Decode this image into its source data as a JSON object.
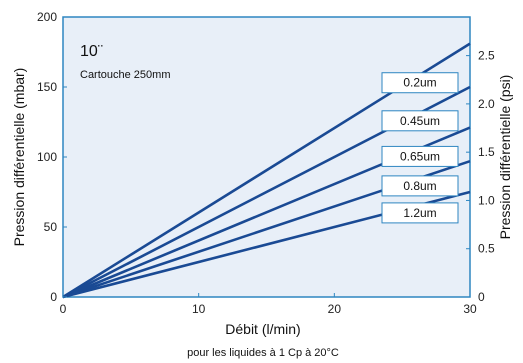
{
  "chart_data": {
    "type": "line",
    "x": [
      0,
      30
    ],
    "xlabel": "Débit (l/min)",
    "ylabel": "Pression différentielle (mbar)",
    "y2label": "Pression différentielle (psi)",
    "note": "pour les liquides à 1 Cp à 20°C",
    "xlim": [
      0,
      30
    ],
    "ylim": [
      0,
      200
    ],
    "y2lim": [
      0,
      2.9
    ],
    "xticks": [
      "0",
      "10",
      "20",
      "30"
    ],
    "yticks": [
      "0",
      "50",
      "100",
      "150",
      "200"
    ],
    "y2ticks": [
      "0",
      "0.5",
      "1.0",
      "1.5",
      "2.0",
      "2.5"
    ],
    "annotations": [
      "10¨",
      "Cartouche 250mm"
    ],
    "grid": false,
    "series": [
      {
        "name": "0.2um",
        "values": [
          0,
          181
        ]
      },
      {
        "name": "0.45um",
        "values": [
          0,
          150
        ]
      },
      {
        "name": "0.65um",
        "values": [
          0,
          121
        ]
      },
      {
        "name": "0.8um",
        "values": [
          0,
          97
        ]
      },
      {
        "name": "1.2um",
        "values": [
          0,
          75
        ]
      }
    ],
    "colors": {
      "plot_background": "#e8eff8",
      "plot_border": "#2e86c1",
      "series_line": "#1a4a94",
      "label_box_border": "#2e86c1"
    }
  }
}
